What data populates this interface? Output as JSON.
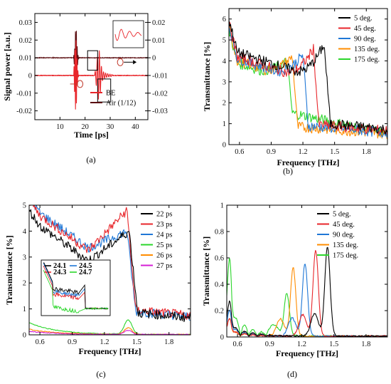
{
  "chart_data": [
    {
      "id": "a",
      "caption": "(a)",
      "type": "line",
      "xlabel": "Time [ps]",
      "ylabel": "Signal power [a.u.]",
      "xlim": [
        0,
        45
      ],
      "ylim": [
        -0.025,
        0.035
      ],
      "y2lim": [
        -0.035,
        0.025
      ],
      "xticks": [
        "10",
        "20",
        "30",
        "40"
      ],
      "yticks": [
        "-0.02",
        "-0.01",
        "0",
        "0.01",
        "0.02",
        "0.03"
      ],
      "y2ticks": [
        "-0.03",
        "-0.02",
        "-0.01",
        "0",
        "0.01",
        "0.02"
      ],
      "legend_position": "bottom-right",
      "series": [
        {
          "name": "BE",
          "color": "#e8262b",
          "axis": "left"
        },
        {
          "name": "Air (1/12)",
          "color": "#5a0d10",
          "axis": "right"
        }
      ],
      "features": {
        "air_main_pulse_ps": [
          15.5,
          17.5
        ],
        "be_main_pulse_ps": [
          15.5,
          17.5
        ],
        "be_echo_ps": [
          25.5,
          28.0
        ],
        "zoom_boxes": [
          [
            21,
            25,
            0.003,
            0.014
          ],
          [
            25,
            30.2,
            -0.015,
            -0.002
          ]
        ],
        "inset": "zoom of echo oscillation"
      }
    },
    {
      "id": "b",
      "caption": "(b)",
      "type": "line",
      "xlabel": "Frequency [THz]",
      "ylabel": "Transmittance [%]",
      "xlim": [
        0.5,
        2.0
      ],
      "ylim": [
        0,
        6.5
      ],
      "xticks": [
        "0.6",
        "0.9",
        "1.2",
        "1.5",
        "1.8"
      ],
      "yticks": [
        "0",
        "1",
        "2",
        "3",
        "4",
        "5",
        "6"
      ],
      "legend_position": "top-right",
      "series": [
        {
          "name": "5 deg.",
          "color": "#000000",
          "peak_thz": 1.4,
          "peak_value": 4.8,
          "cutoff_thz": 1.45
        },
        {
          "name": "45 deg.",
          "color": "#e8262b",
          "peak_thz": 1.3,
          "peak_value": 4.6,
          "cutoff_thz": 1.36
        },
        {
          "name": "90 deg.",
          "color": "#1f77d6",
          "peak_thz": 1.2,
          "peak_value": 4.3,
          "cutoff_thz": 1.25
        },
        {
          "name": "135 deg.",
          "color": "#ff8c00",
          "peak_thz": 1.1,
          "peak_value": 4.2,
          "cutoff_thz": 1.14
        },
        {
          "name": "175 deg.",
          "color": "#2bd62b",
          "peak_thz": 1.05,
          "peak_value": 4.0,
          "cutoff_thz": 1.08
        }
      ]
    },
    {
      "id": "c",
      "caption": "(c)",
      "type": "line",
      "xlabel": "Frequency [THz]",
      "ylabel": "Transmittance [%]",
      "xlim": [
        0.5,
        2.0
      ],
      "ylim": [
        0,
        5
      ],
      "xticks": [
        "0.6",
        "0.9",
        "1.2",
        "1.5",
        "1.8"
      ],
      "yticks": [
        "0",
        "1",
        "2",
        "3",
        "4",
        "5"
      ],
      "legend_position": "top-right",
      "series": [
        {
          "name": "22 ps",
          "color": "#000000"
        },
        {
          "name": "23 ps",
          "color": "#e8262b"
        },
        {
          "name": "24 ps",
          "color": "#1f77d6"
        },
        {
          "name": "25 ps",
          "color": "#2bd62b"
        },
        {
          "name": "26 ps",
          "color": "#ff8c00"
        },
        {
          "name": "27 ps",
          "color": "#d61fd6"
        }
      ],
      "inset_legend": [
        {
          "name": "24.1",
          "color": "#000000"
        },
        {
          "name": "24.3",
          "color": "#e8262b"
        },
        {
          "name": "24.5",
          "color": "#1f77d6"
        },
        {
          "name": "24.7",
          "color": "#2bd62b"
        }
      ]
    },
    {
      "id": "d",
      "caption": "(d)",
      "type": "line",
      "xlabel": "Frequency [THz]",
      "ylabel": "Transmittance [%]",
      "xlim": [
        0.5,
        2.0
      ],
      "ylim": [
        0,
        1
      ],
      "xticks": [
        "0.6",
        "0.9",
        "1.2",
        "1.5",
        "1.8"
      ],
      "yticks": [
        "0",
        "0.2",
        "0.4",
        "0.6",
        "0.8",
        "1"
      ],
      "legend_position": "top-right",
      "series": [
        {
          "name": "5 deg.",
          "color": "#000000",
          "peak_thz": 1.44,
          "peak_value": 0.68
        },
        {
          "name": "45 deg.",
          "color": "#e8262b",
          "peak_thz": 1.33,
          "peak_value": 0.65
        },
        {
          "name": "90 deg.",
          "color": "#1f77d6",
          "peak_thz": 1.23,
          "peak_value": 0.55
        },
        {
          "name": "135 deg.",
          "color": "#ff8c00",
          "peak_thz": 1.12,
          "peak_value": 0.52
        },
        {
          "name": "175 deg.",
          "color": "#2bd62b",
          "peak_thz": 1.06,
          "peak_value": 0.32
        }
      ]
    }
  ]
}
